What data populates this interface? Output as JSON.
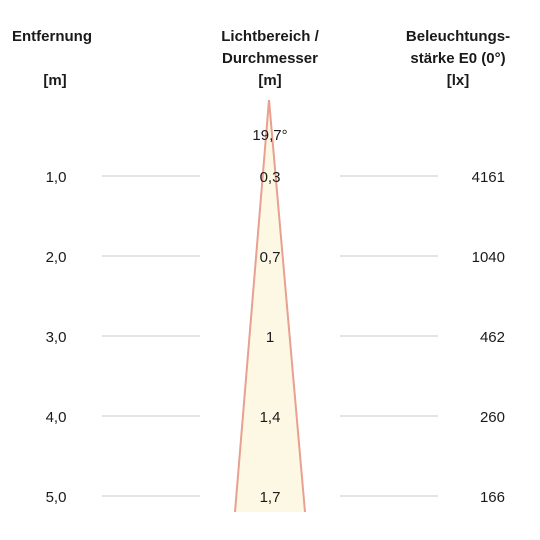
{
  "headers": {
    "distance": {
      "line1": "Entfernung",
      "unit": "[m]"
    },
    "diameter": {
      "line1": "Lichtbereich /",
      "line2": "Durchmesser",
      "unit": "[m]"
    },
    "illuminance": {
      "line1": "Beleuchtungs-",
      "line2": "stärke E0 (0°)",
      "unit": "[lx]"
    }
  },
  "beam_angle": "19,7°",
  "rows": [
    {
      "distance": "1,0",
      "diameter": "0,3",
      "illuminance": "4161"
    },
    {
      "distance": "2,0",
      "diameter": "0,7",
      "illuminance": "1040"
    },
    {
      "distance": "3,0",
      "diameter": "1",
      "illuminance": "462"
    },
    {
      "distance": "4,0",
      "diameter": "1,4",
      "illuminance": "260"
    },
    {
      "distance": "5,0",
      "diameter": "1,7",
      "illuminance": "166"
    }
  ],
  "colors": {
    "cone_fill": "#fdf8e4",
    "cone_edge": "#e8a090"
  }
}
